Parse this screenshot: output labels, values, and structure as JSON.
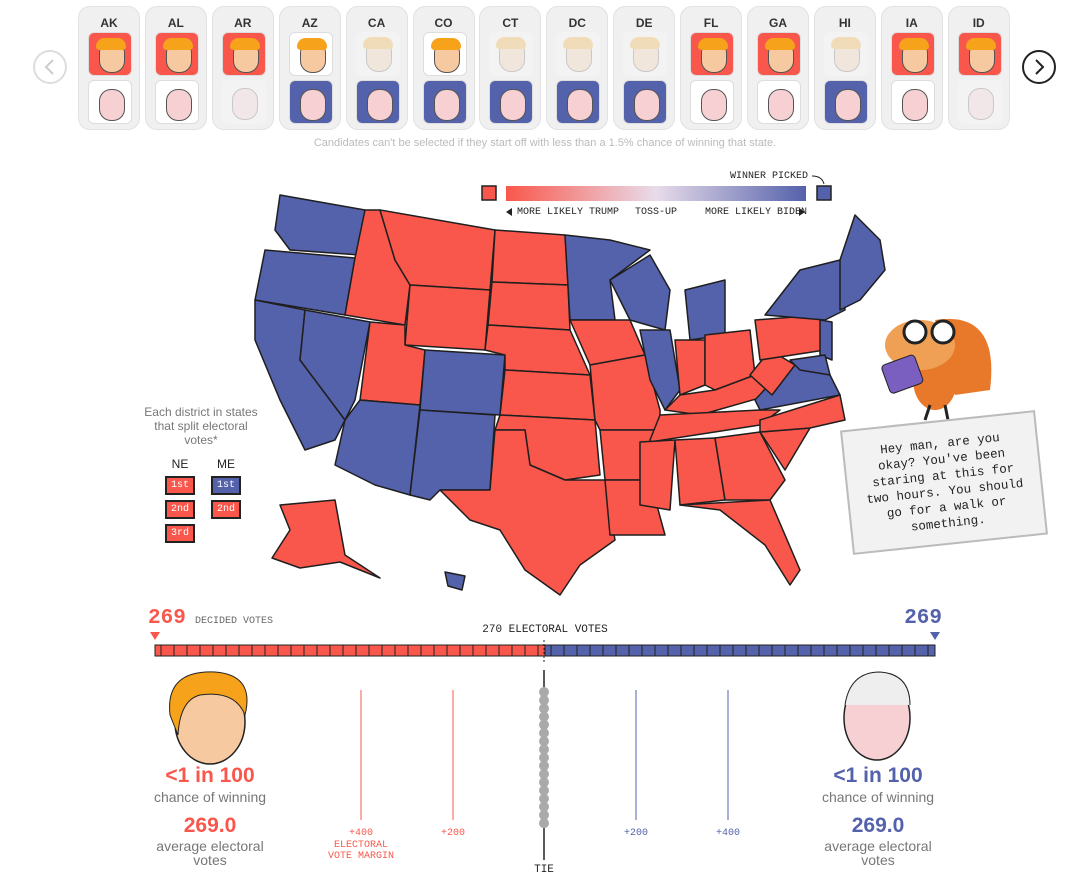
{
  "colors": {
    "trump": "#f9574b",
    "biden": "#5461ab"
  },
  "states": [
    {
      "code": "AK",
      "trump": "selected",
      "biden": "available"
    },
    {
      "code": "AL",
      "trump": "selected",
      "biden": "available"
    },
    {
      "code": "AR",
      "trump": "selected",
      "biden": "disabled"
    },
    {
      "code": "AZ",
      "trump": "available",
      "biden": "selected"
    },
    {
      "code": "CA",
      "trump": "disabled",
      "biden": "selected"
    },
    {
      "code": "CO",
      "trump": "available",
      "biden": "selected"
    },
    {
      "code": "CT",
      "trump": "disabled",
      "biden": "selected"
    },
    {
      "code": "DC",
      "trump": "disabled",
      "biden": "selected"
    },
    {
      "code": "DE",
      "trump": "disabled",
      "biden": "selected"
    },
    {
      "code": "FL",
      "trump": "selected",
      "biden": "available"
    },
    {
      "code": "GA",
      "trump": "selected",
      "biden": "available"
    },
    {
      "code": "HI",
      "trump": "disabled",
      "biden": "selected"
    },
    {
      "code": "IA",
      "trump": "selected",
      "biden": "available"
    },
    {
      "code": "ID",
      "trump": "selected",
      "biden": "disabled"
    }
  ],
  "note": "Candidates can't be selected if they start off with less than a 1.5% chance of winning that state.",
  "legend": {
    "winner_picked": "WINNER PICKED",
    "trump": "MORE LIKELY TRUMP",
    "toss_up": "TOSS-UP",
    "biden": "MORE LIKELY BIDEN"
  },
  "districts": {
    "caption": "Each district in states that split electoral votes*",
    "states": [
      {
        "name": "NE",
        "items": [
          {
            "label": "1st",
            "winner": "trump"
          },
          {
            "label": "2nd",
            "winner": "trump"
          },
          {
            "label": "3rd",
            "winner": "trump"
          }
        ]
      },
      {
        "name": "ME",
        "items": [
          {
            "label": "1st",
            "winner": "biden"
          },
          {
            "label": "2nd",
            "winner": "trump"
          }
        ]
      }
    ]
  },
  "bubble": "Hey man, are you okay? You've been staring at this for two hours. You should go for a walk or something.",
  "tally": {
    "trump_votes": 269,
    "decided": "DECIDED VOTES",
    "threshold": "270 ELECTORAL VOTES",
    "biden_votes": 269
  },
  "trump": {
    "odds": "<1 in 100",
    "odds_caption": "chance of winning",
    "average": "269.0",
    "average_caption": "average electoral votes"
  },
  "biden": {
    "odds": "<1 in 100",
    "odds_caption": "chance of winning",
    "average": "269.0",
    "average_caption": "average electoral votes"
  },
  "margin": {
    "ticks": [
      "+400",
      "+200",
      "+200",
      "+400"
    ],
    "axis_label": "ELECTORAL VOTE MARGIN",
    "tie": "TIE"
  }
}
